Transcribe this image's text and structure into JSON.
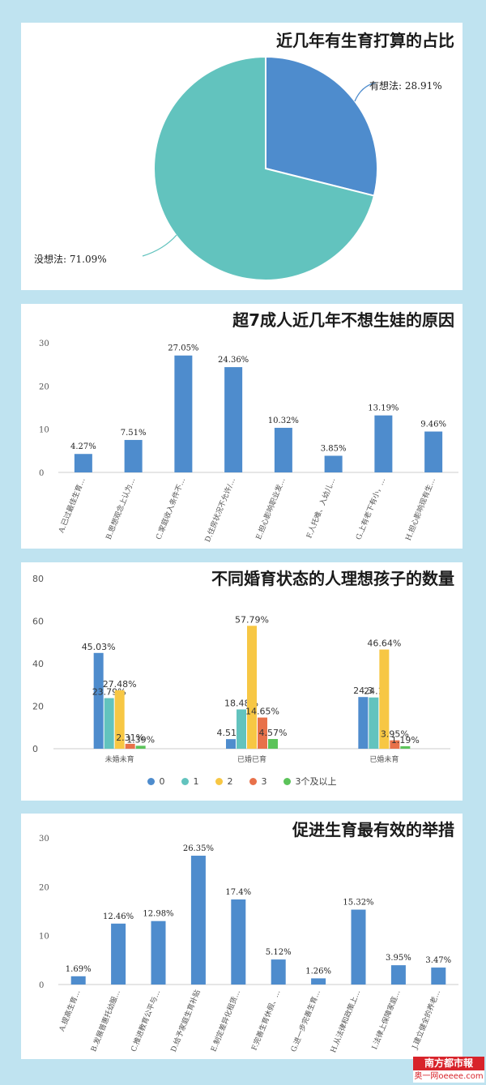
{
  "colors": {
    "bar_blue": "#4e8ccd",
    "pie_blue": "#4e8ccd",
    "pie_teal": "#62c3be",
    "series": [
      "#4e8ccd",
      "#62c3be",
      "#f7c744",
      "#e8714a",
      "#5cc35a"
    ]
  },
  "chart_data": [
    {
      "type": "pie",
      "title": "近几年有生育打算的占比",
      "labels": [
        "有想法: 28.91%",
        "没想法: 71.09%"
      ],
      "values": [
        28.91,
        71.09
      ]
    },
    {
      "type": "bar",
      "title": "超7成人近几年不想生娃的原因",
      "ylim": [
        0,
        30
      ],
      "yticks": [
        "0",
        "10",
        "20",
        "30"
      ],
      "categories": [
        "A.已过最佳生育…",
        "B.思想观念上认为…",
        "C.家庭收入条件不…",
        "D.住房状况不允许/…",
        "E.担心影响职业发…",
        "F.人托难、入幼儿…",
        "G.上有老下有小，…",
        "H.担心影响现有生…"
      ],
      "values": [
        4.27,
        7.51,
        27.05,
        24.36,
        10.32,
        3.85,
        13.19,
        9.46
      ],
      "labels": [
        "4.27%",
        "7.51%",
        "27.05%",
        "24.36%",
        "10.32%",
        "3.85%",
        "13.19%",
        "9.46%"
      ]
    },
    {
      "type": "bar",
      "title": "不同婚育状态的人理想孩子的数量",
      "ylim": [
        0,
        80
      ],
      "yticks": [
        "0",
        "20",
        "40",
        "60",
        "80"
      ],
      "categories": [
        "未婚未育",
        "已婚已育",
        "已婚未育"
      ],
      "series": [
        {
          "name": "0",
          "values": [
            45.03,
            4.51,
            24.3
          ],
          "labels": [
            "45.03%",
            "4.51%",
            "24.3"
          ]
        },
        {
          "name": "1",
          "values": [
            23.79,
            18.48,
            24.1
          ],
          "labels": [
            "23.79%",
            "18.48%",
            "24.1"
          ]
        },
        {
          "name": "2",
          "values": [
            27.48,
            57.79,
            46.64
          ],
          "labels": [
            "27.48%",
            "57.79%",
            "46.64%"
          ]
        },
        {
          "name": "3",
          "values": [
            2.31,
            14.65,
            3.95
          ],
          "labels": [
            "2.31%",
            "14.65%",
            "3.95%"
          ]
        },
        {
          "name": "3个及以上",
          "values": [
            1.39,
            4.57,
            1.19
          ],
          "labels": [
            "1.39%",
            "4.57%",
            "1.19%"
          ]
        }
      ],
      "legend": "bottom"
    },
    {
      "type": "bar",
      "title": "促进生育最有效的举措",
      "ylim": [
        0,
        30
      ],
      "yticks": [
        "0",
        "10",
        "20",
        "30"
      ],
      "categories": [
        "A.提高生育…",
        "B.发展普惠托幼服…",
        "C.推进教育公平与…",
        "D.给予家庭生育补贴",
        "E.制定差异化租赁…",
        "F.完善生育休假、…",
        "G.进一步完善生育…",
        "H.从法律和政策上…",
        "I.法律上保障家庭…",
        "J.建立健全的养老…"
      ],
      "values": [
        1.69,
        12.46,
        12.98,
        26.35,
        17.4,
        5.12,
        1.26,
        15.32,
        3.95,
        3.47
      ],
      "labels": [
        "1.69%",
        "12.46%",
        "12.98%",
        "26.35%",
        "17.4%",
        "5.12%",
        "1.26%",
        "15.32%",
        "3.95%",
        "3.47%"
      ]
    }
  ],
  "logo": {
    "top": "南方都市報",
    "bottom": "奥一网oeeee.com"
  }
}
